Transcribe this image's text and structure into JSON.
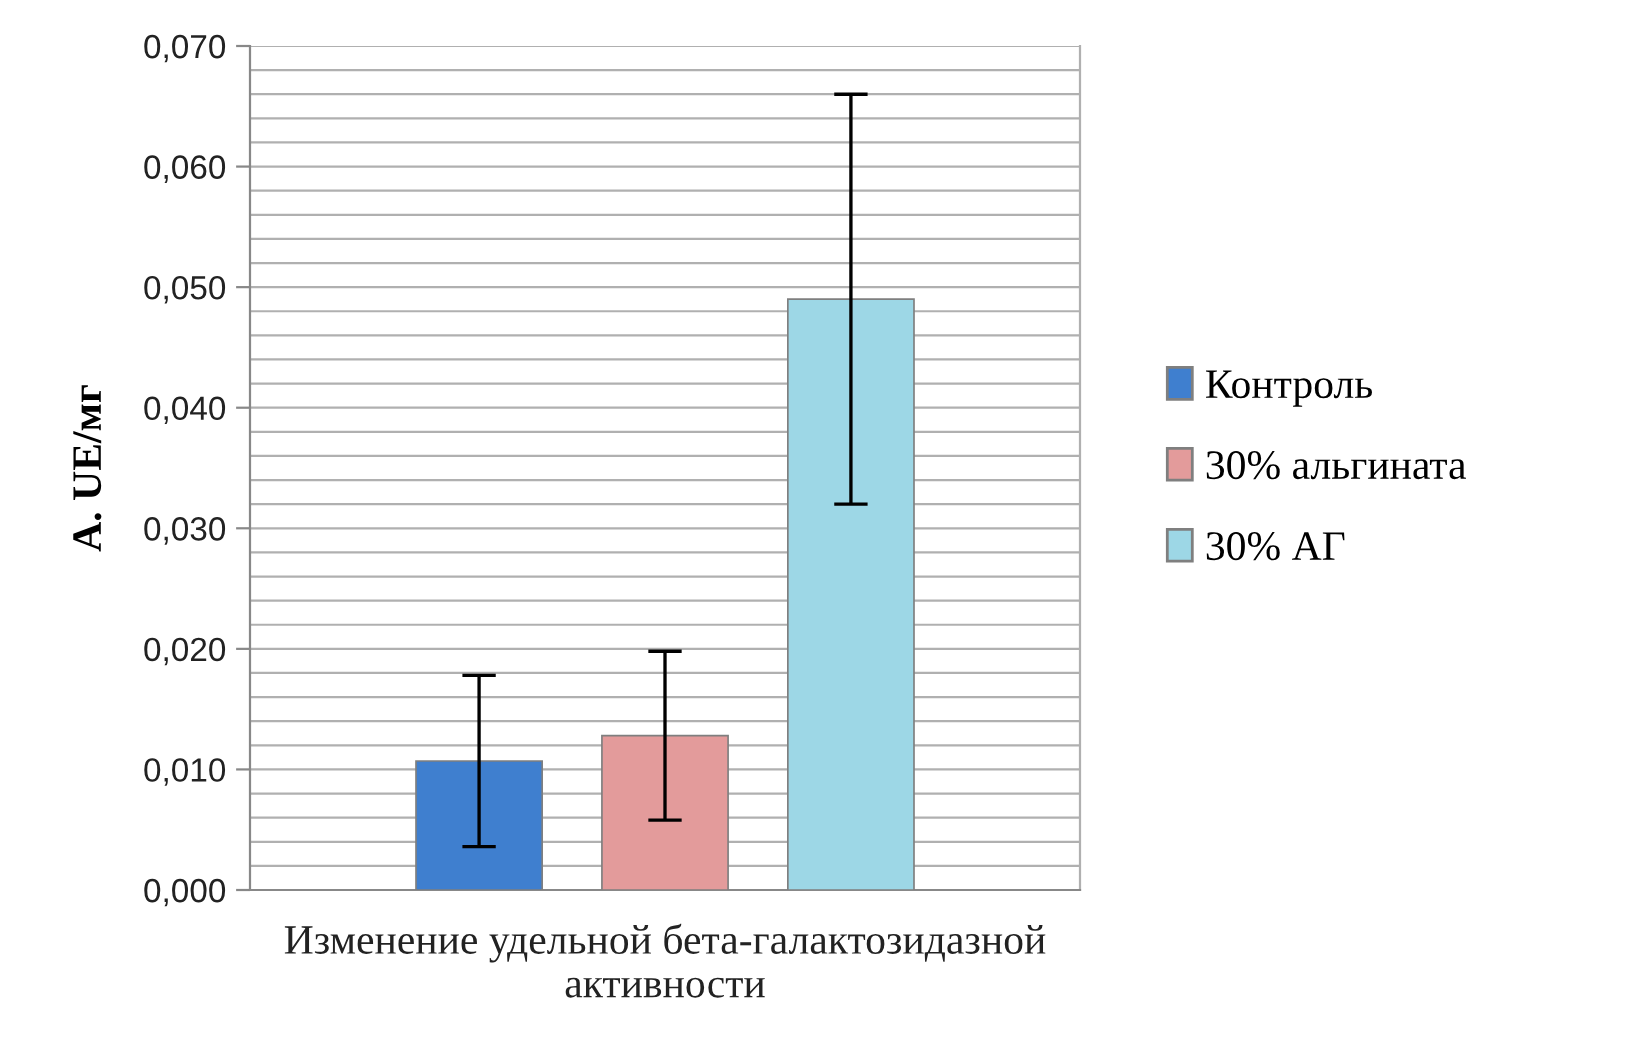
{
  "chart_data": {
    "type": "bar",
    "ylabel": "А. UE/мг",
    "categories": [
      "Изменение удельной бета-галактозидазной активности"
    ],
    "series": [
      {
        "name": "Контроль",
        "color": "#3f7fcf",
        "values": [
          0.0107
        ],
        "errors": [
          0.0071
        ]
      },
      {
        "name": "30% альгината",
        "color": "#e39b9b",
        "values": [
          0.0128
        ],
        "errors": [
          0.007
        ]
      },
      {
        "name": "30% АГ",
        "color": "#9dd7e6",
        "values": [
          0.049
        ],
        "errors": [
          0.017
        ]
      }
    ],
    "ylim": [
      0,
      0.07
    ],
    "yticks": [
      {
        "value": 0,
        "label": "0,000"
      },
      {
        "value": 0.002,
        "label": null
      },
      {
        "value": 0.004,
        "label": null
      },
      {
        "value": 0.006,
        "label": null
      },
      {
        "value": 0.008,
        "label": null
      },
      {
        "value": 0.01,
        "label": "0,010"
      },
      {
        "value": 0.012,
        "label": null
      },
      {
        "value": 0.014,
        "label": null
      },
      {
        "value": 0.016,
        "label": null
      },
      {
        "value": 0.018,
        "label": null
      },
      {
        "value": 0.02,
        "label": "0,020"
      },
      {
        "value": 0.022,
        "label": null
      },
      {
        "value": 0.024,
        "label": null
      },
      {
        "value": 0.026,
        "label": null
      },
      {
        "value": 0.028,
        "label": null
      },
      {
        "value": 0.03,
        "label": "0,030"
      },
      {
        "value": 0.032,
        "label": null
      },
      {
        "value": 0.034,
        "label": null
      },
      {
        "value": 0.036,
        "label": null
      },
      {
        "value": 0.038,
        "label": null
      },
      {
        "value": 0.04,
        "label": "0,040"
      },
      {
        "value": 0.042,
        "label": null
      },
      {
        "value": 0.044,
        "label": null
      },
      {
        "value": 0.046,
        "label": null
      },
      {
        "value": 0.048,
        "label": null
      },
      {
        "value": 0.05,
        "label": "0,050"
      },
      {
        "value": 0.052,
        "label": null
      },
      {
        "value": 0.054,
        "label": null
      },
      {
        "value": 0.056,
        "label": null
      },
      {
        "value": 0.058,
        "label": null
      },
      {
        "value": 0.06,
        "label": "0,060"
      },
      {
        "value": 0.062,
        "label": null
      },
      {
        "value": 0.064,
        "label": null
      },
      {
        "value": 0.066,
        "label": null
      },
      {
        "value": 0.068,
        "label": null
      },
      {
        "value": 0.07,
        "label": "0,070"
      }
    ],
    "grid": "y",
    "legend": "right"
  }
}
